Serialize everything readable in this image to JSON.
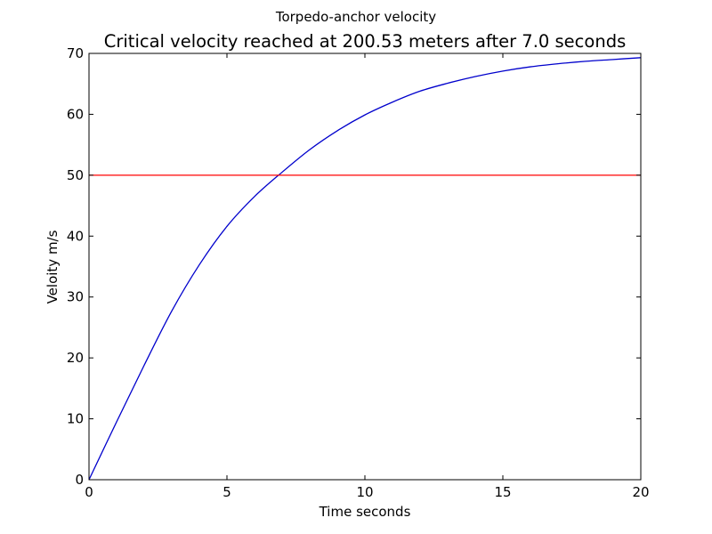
{
  "chart_data": {
    "type": "line",
    "suptitle": "Torpedo-anchor velocity",
    "title": "Critical velocity reached at 200.53 meters after 7.0 seconds",
    "xlabel": "Time seconds",
    "ylabel": "Veloity m/s",
    "xlim": [
      0,
      20
    ],
    "ylim": [
      0,
      70
    ],
    "xticks": [
      0,
      5,
      10,
      15,
      20
    ],
    "yticks": [
      0,
      10,
      20,
      30,
      40,
      50,
      60,
      70
    ],
    "grid": false,
    "series": [
      {
        "color": "#0000cc",
        "x": [
          0,
          1,
          2,
          3,
          4,
          5,
          6,
          7,
          8,
          9,
          10,
          11,
          12,
          13,
          14,
          15,
          16,
          17,
          18,
          19,
          20
        ],
        "values": [
          0,
          9.5,
          18.8,
          27.7,
          35.3,
          41.6,
          46.5,
          50.5,
          54.2,
          57.3,
          59.9,
          62.0,
          63.8,
          65.1,
          66.2,
          67.1,
          67.8,
          68.3,
          68.7,
          69.0,
          69.3
        ]
      },
      {
        "color": "#ff0000",
        "x": [
          0,
          20
        ],
        "values": [
          50,
          50
        ]
      }
    ]
  }
}
